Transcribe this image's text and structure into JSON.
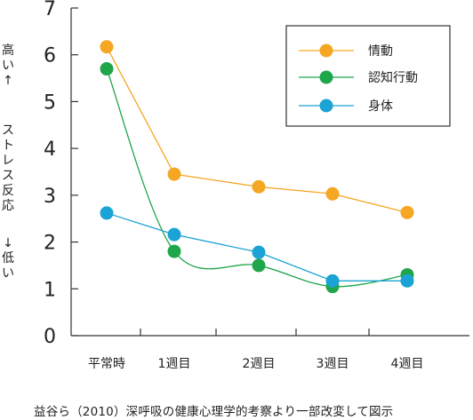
{
  "chart_data": {
    "type": "line",
    "categories": [
      "平常時",
      "1週目",
      "2週目",
      "3週目",
      "4週目"
    ],
    "ylim": [
      0,
      7
    ],
    "yticks": [
      "0",
      "1",
      "2",
      "3",
      "4",
      "5",
      "6",
      "7"
    ],
    "ylabel_high": "高い↑",
    "ylabel_main": "ストレス反応",
    "ylabel_low": "↓低い",
    "series": [
      {
        "name": "情動",
        "color": "#f5a623",
        "values": [
          6.17,
          3.45,
          3.18,
          3.03,
          2.63
        ],
        "curve": "straight"
      },
      {
        "name": "認知行動",
        "color": "#1fa64a",
        "values": [
          5.7,
          1.8,
          1.5,
          1.05,
          1.3
        ],
        "curve": "smooth"
      },
      {
        "name": "身体",
        "color": "#1aa3d4",
        "values": [
          2.62,
          2.16,
          1.78,
          1.17,
          1.17
        ],
        "curve": "straight"
      }
    ],
    "legend_position": "top-right",
    "grid": false
  },
  "caption": "益谷ら（2010）深呼吸の健康心理学的考察より一部改変して図示"
}
